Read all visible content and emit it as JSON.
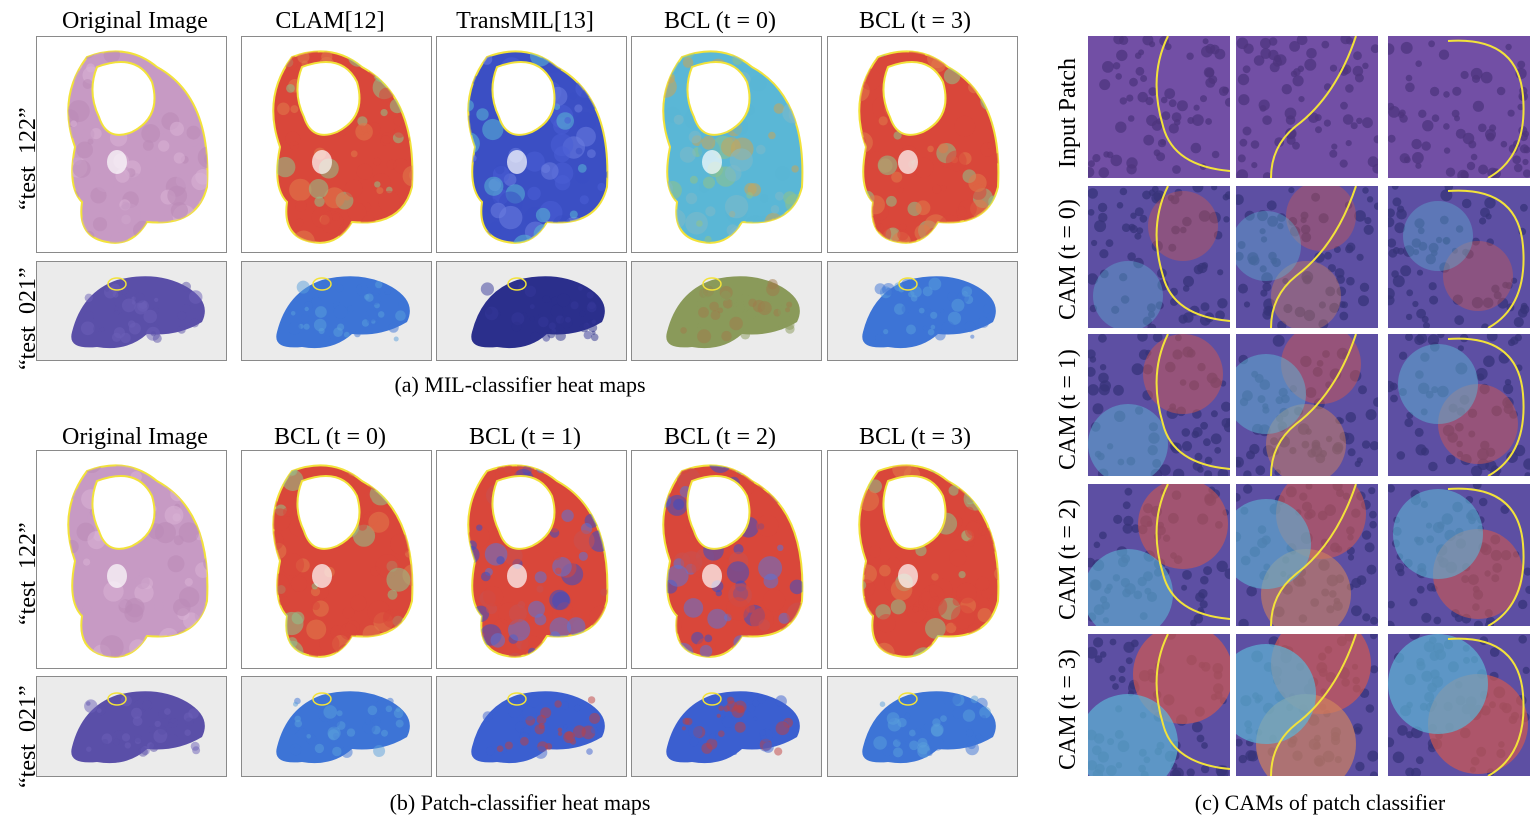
{
  "panel_a": {
    "columns": [
      "Original Image",
      "CLAM[12]",
      "TransMIL[13]",
      "BCL (t = 0)",
      "BCL (t = 3)"
    ],
    "rows": [
      "“test_122”",
      "“test_021”"
    ],
    "caption": "(a) MIL-classifier heat maps"
  },
  "panel_b": {
    "columns": [
      "Original Image",
      "BCL (t = 0)",
      "BCL (t = 1)",
      "BCL (t = 2)",
      "BCL (t = 3)"
    ],
    "rows": [
      "“test_122”",
      "“test_021”"
    ],
    "caption": "(b) Patch-classifier heat maps"
  },
  "panel_c": {
    "rows": [
      "Input Patch",
      "CAM (t = 0)",
      "CAM (t = 1)",
      "CAM (t = 2)",
      "CAM (t = 3)"
    ],
    "caption": "(c) CAMs of  patch classifier"
  },
  "colors": {
    "tissue_he": "#c79ac4",
    "heat_red": "#d9473a",
    "heat_blue": "#3b4fc4",
    "heat_cyan": "#5ab7d6",
    "heat_green": "#8fc28a",
    "annotation": "#f2e23a"
  }
}
